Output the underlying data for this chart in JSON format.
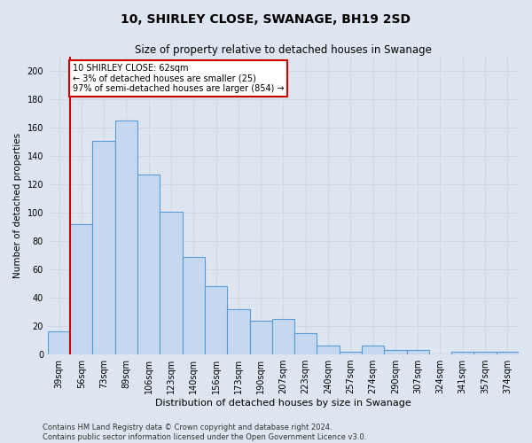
{
  "title": "10, SHIRLEY CLOSE, SWANAGE, BH19 2SD",
  "subtitle": "Size of property relative to detached houses in Swanage",
  "xlabel": "Distribution of detached houses by size in Swanage",
  "ylabel": "Number of detached properties",
  "footer_line1": "Contains HM Land Registry data © Crown copyright and database right 2024.",
  "footer_line2": "Contains public sector information licensed under the Open Government Licence v3.0.",
  "categories": [
    "39sqm",
    "56sqm",
    "73sqm",
    "89sqm",
    "106sqm",
    "123sqm",
    "140sqm",
    "156sqm",
    "173sqm",
    "190sqm",
    "207sqm",
    "223sqm",
    "240sqm",
    "257sqm",
    "274sqm",
    "290sqm",
    "307sqm",
    "324sqm",
    "341sqm",
    "357sqm",
    "374sqm"
  ],
  "values": [
    16,
    92,
    151,
    165,
    127,
    101,
    69,
    48,
    32,
    24,
    25,
    15,
    6,
    2,
    6,
    3,
    3,
    0,
    2,
    2,
    2
  ],
  "bar_color": "#c5d8f0",
  "bar_edge_color": "#5b9bd5",
  "bar_edge_width": 0.8,
  "red_line_x": 0.5,
  "annotation_text": "10 SHIRLEY CLOSE: 62sqm\n← 3% of detached houses are smaller (25)\n97% of semi-detached houses are larger (854) →",
  "annotation_box_color": "#ffffff",
  "annotation_box_edge_color": "#cc0000",
  "red_line_color": "#cc0000",
  "grid_color": "#d0d8e8",
  "background_color": "#dde6f0",
  "ylim": [
    0,
    210
  ],
  "yticks": [
    0,
    20,
    40,
    60,
    80,
    100,
    120,
    140,
    160,
    180,
    200
  ],
  "title_fontsize": 10,
  "subtitle_fontsize": 8.5,
  "xlabel_fontsize": 8,
  "ylabel_fontsize": 7.5,
  "tick_fontsize": 7,
  "annotation_fontsize": 7,
  "footer_fontsize": 6
}
